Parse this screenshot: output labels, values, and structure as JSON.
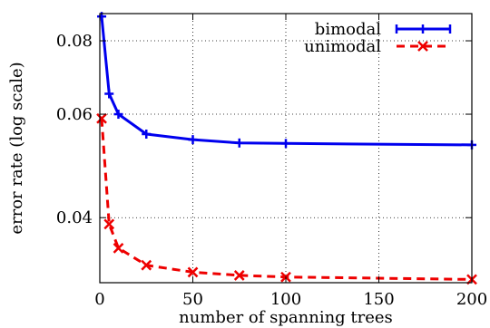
{
  "chart_data": {
    "type": "line",
    "title": "",
    "xlabel": "number of spanning trees",
    "ylabel": "error rate (log scale)",
    "yscale": "log",
    "xlim": [
      0,
      200
    ],
    "ylim": [
      0.031,
      0.089
    ],
    "x_ticks": [
      0,
      50,
      100,
      150,
      200
    ],
    "y_ticks": [
      0.04,
      0.06,
      0.08
    ],
    "x_tick_labels": [
      "0",
      "50",
      "100",
      "150",
      "200"
    ],
    "y_tick_labels": [
      "0.04",
      "0.06",
      "0.08"
    ],
    "legend_position": "top-right",
    "series": [
      {
        "name": "bimodal",
        "color": "#0000ee",
        "line": "solid",
        "marker": "plus",
        "x": [
          1,
          5,
          10,
          25,
          50,
          75,
          100,
          200
        ],
        "y": [
          0.088,
          0.065,
          0.06,
          0.0555,
          0.0543,
          0.0536,
          0.0535,
          0.0532
        ]
      },
      {
        "name": "unimodal",
        "color": "#ee0000",
        "line": "dashed",
        "marker": "x",
        "x": [
          1,
          5,
          10,
          25,
          50,
          75,
          100,
          200
        ],
        "y": [
          0.059,
          0.039,
          0.0355,
          0.0332,
          0.0323,
          0.0319,
          0.0317,
          0.0314
        ]
      }
    ]
  }
}
